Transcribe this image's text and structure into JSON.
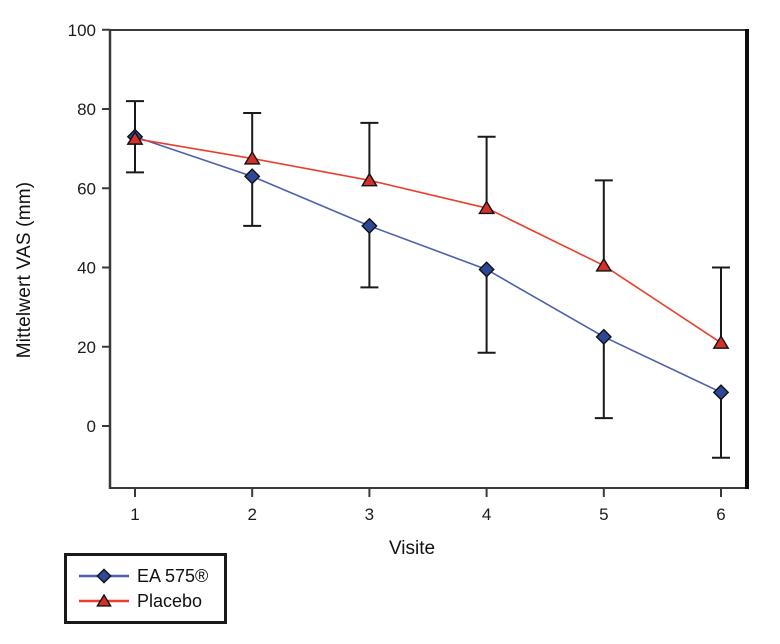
{
  "chart_data": {
    "type": "line",
    "title": "",
    "xlabel": "Visite",
    "ylabel": "Mittelwert VAS (mm)",
    "x": [
      1,
      2,
      3,
      4,
      5,
      6
    ],
    "xtick_labels": [
      "1",
      "2",
      "3",
      "4",
      "5",
      "6"
    ],
    "yticks": [
      0,
      20,
      40,
      60,
      80,
      100
    ],
    "ylim": [
      -15.6,
      100
    ],
    "xlim": [
      0.8,
      6.22
    ],
    "grid": false,
    "legend_position": "bottom-left-below-plot",
    "series": [
      {
        "name": "EA 575®",
        "values": [
          73,
          63,
          50.5,
          39.5,
          22.5,
          8.5
        ],
        "error_dir": "low",
        "error_to": [
          64,
          50.5,
          35,
          18.5,
          2,
          -8
        ],
        "marker": "diamond",
        "line_color": "#4c61aa",
        "marker_color": "#2e4899"
      },
      {
        "name": "Placebo",
        "values": [
          72.5,
          67.5,
          62,
          55,
          40.5,
          21
        ],
        "error_dir": "high",
        "error_to": [
          82,
          79,
          76.5,
          73,
          62,
          40
        ],
        "marker": "triangle",
        "line_color": "#e8402d",
        "marker_color": "#d4302a"
      }
    ],
    "error_bar_color": "#1a1a1a",
    "axis_color": "#3a3a3a",
    "right_frame_color": "#0d0d0d"
  }
}
